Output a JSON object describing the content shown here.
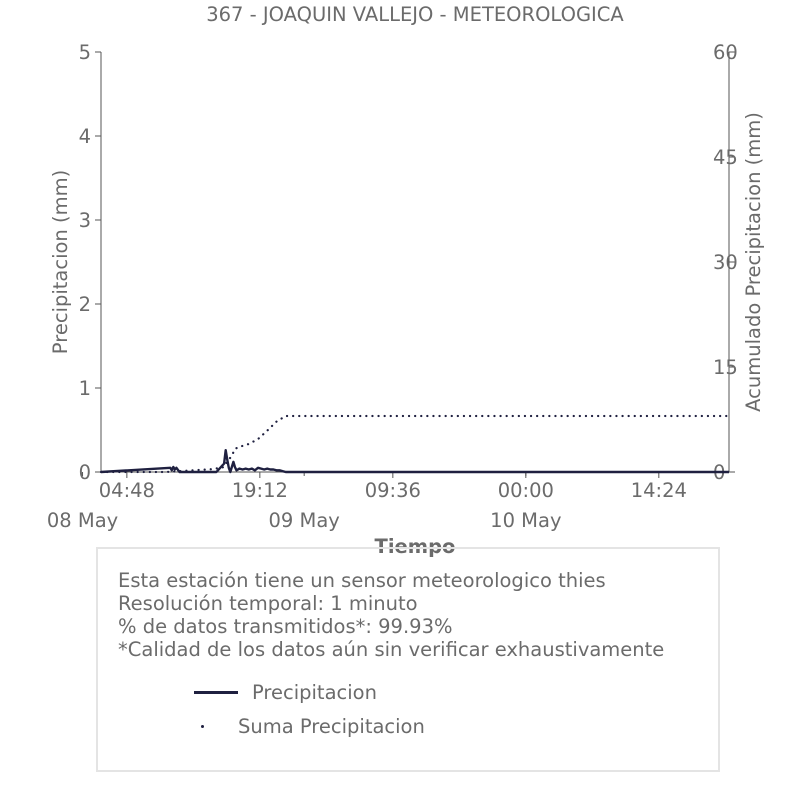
{
  "chart_data": {
    "type": "line",
    "title": "367 - JOAQUIN VALLEJO - METEOROLOGICA",
    "xlabel": "Tiempo",
    "ylabel": "Precipitacion (mm)",
    "y2label": "Acumulado Precipitacion (mm)",
    "ylim": [
      0,
      5
    ],
    "y2lim": [
      0,
      60
    ],
    "yticks": [
      "0",
      "1",
      "2",
      "3",
      "4",
      "5"
    ],
    "y2ticks": [
      "0",
      "15",
      "30",
      "45",
      "60"
    ],
    "x_ticks": [
      {
        "time": "2024-05-08 04:48",
        "label": "04:48"
      },
      {
        "time": "2024-05-08 19:12",
        "label": "19:12"
      },
      {
        "time": "2024-05-09 09:36",
        "label": "09:36"
      },
      {
        "time": "2024-05-10 00:00",
        "label": "00:00"
      },
      {
        "time": "2024-05-10 14:24",
        "label": "14:24"
      }
    ],
    "x_date_labels": [
      {
        "time": "2024-05-08 00:00",
        "label": "08 May"
      },
      {
        "time": "2024-05-09 00:00",
        "label": "09 May"
      },
      {
        "time": "2024-05-10 00:00",
        "label": "10 May"
      }
    ],
    "xlim": [
      "2024-05-08 02:00",
      "2024-05-10 22:00"
    ],
    "grid": false,
    "series": [
      {
        "name": "Precipitacion",
        "axis": "left",
        "style": "solid",
        "color": "#1f2040",
        "x": [
          "2024-05-08 02:00",
          "2024-05-08 09:30",
          "2024-05-08 09:40",
          "2024-05-08 09:50",
          "2024-05-08 10:00",
          "2024-05-08 10:10",
          "2024-05-08 10:30",
          "2024-05-08 12:00",
          "2024-05-08 14:30",
          "2024-05-08 15:20",
          "2024-05-08 15:30",
          "2024-05-08 15:40",
          "2024-05-08 15:50",
          "2024-05-08 16:00",
          "2024-05-08 16:20",
          "2024-05-08 16:30",
          "2024-05-08 16:40",
          "2024-05-08 17:00",
          "2024-05-08 17:20",
          "2024-05-08 17:40",
          "2024-05-08 18:00",
          "2024-05-08 18:20",
          "2024-05-08 18:40",
          "2024-05-08 19:00",
          "2024-05-08 19:20",
          "2024-05-08 19:40",
          "2024-05-08 20:00",
          "2024-05-08 20:20",
          "2024-05-08 20:40",
          "2024-05-08 21:00",
          "2024-05-08 21:20",
          "2024-05-08 21:40",
          "2024-05-08 22:00",
          "2024-05-09 00:00",
          "2024-05-10 22:00"
        ],
        "values": [
          0,
          0.05,
          0.02,
          0.06,
          0.03,
          0.05,
          0,
          0,
          0,
          0.1,
          0.26,
          0.15,
          0.05,
          0,
          0.12,
          0.06,
          0.02,
          0.04,
          0.03,
          0.04,
          0.03,
          0.04,
          0.02,
          0.05,
          0.04,
          0.03,
          0.04,
          0.03,
          0.03,
          0.02,
          0.02,
          0.01,
          0,
          0,
          0
        ]
      },
      {
        "name": "Suma Precipitacion",
        "axis": "right",
        "style": "dotted",
        "color": "#1f2040",
        "x": [
          "2024-05-08 02:00",
          "2024-05-08 09:00",
          "2024-05-08 14:00",
          "2024-05-08 15:20",
          "2024-05-08 15:40",
          "2024-05-08 16:10",
          "2024-05-08 16:30",
          "2024-05-08 17:00",
          "2024-05-08 18:00",
          "2024-05-08 19:00",
          "2024-05-08 20:00",
          "2024-05-08 21:00",
          "2024-05-08 22:00",
          "2024-05-09 02:00",
          "2024-05-10 22:00"
        ],
        "values": [
          0,
          0,
          0.4,
          0.7,
          1.5,
          2.3,
          3.3,
          3.6,
          4.0,
          4.7,
          5.9,
          7.2,
          8.0,
          8.0,
          8.0
        ]
      }
    ]
  },
  "info": {
    "line1": "Esta estación tiene un sensor meteorologico thies",
    "line2": "Resolución temporal: 1 minuto",
    "line3": "% de datos transmitidos*: 99.93%",
    "line4": "*Calidad de los datos aún sin verificar exhaustivamente"
  },
  "legend": {
    "precip_label": "Precipitacion",
    "sum_label": "Suma Precipitacion"
  }
}
